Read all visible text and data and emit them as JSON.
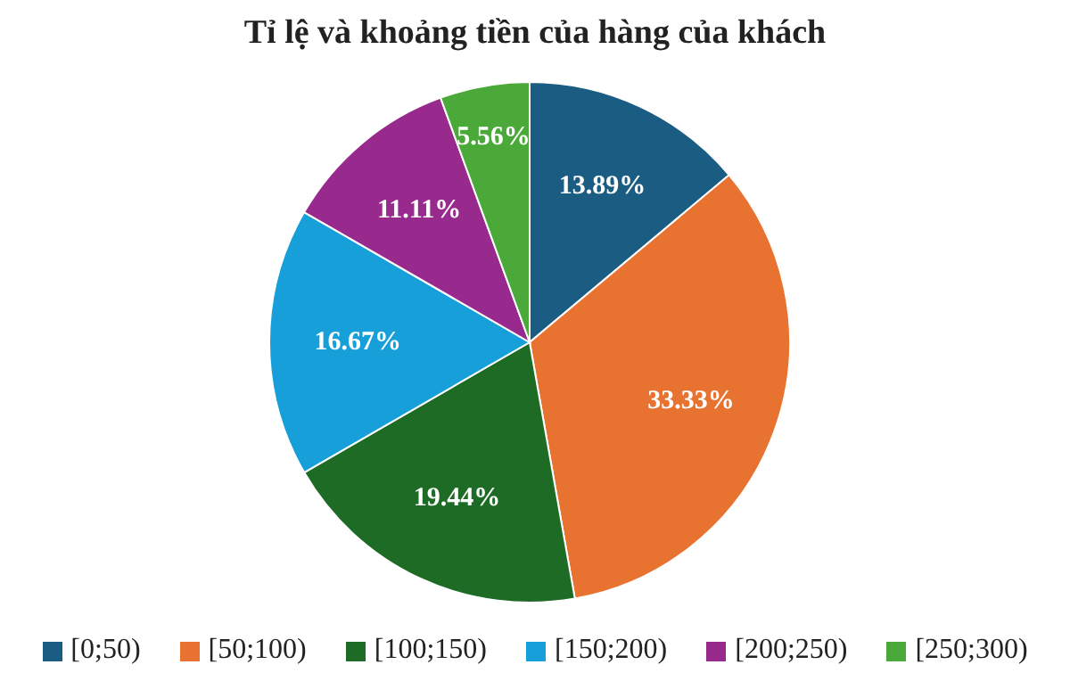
{
  "chart_data": {
    "type": "pie",
    "title": "Tỉ lệ và khoảng tiền của hàng của khách",
    "categories": [
      "[0;50)",
      "[50;100)",
      "[100;150)",
      "[150;200)",
      "[200;250)",
      "[250;300)"
    ],
    "values": [
      13.89,
      33.33,
      19.44,
      16.67,
      11.11,
      5.56
    ],
    "value_labels": [
      "13.89%",
      "33.33%",
      "19.44%",
      "16.67%",
      "11.11%",
      "5.56%"
    ],
    "colors": [
      "#1b5c82",
      "#e8722f",
      "#1e6b26",
      "#169fd9",
      "#982a8d",
      "#4aa938"
    ],
    "legend": "bottom"
  }
}
